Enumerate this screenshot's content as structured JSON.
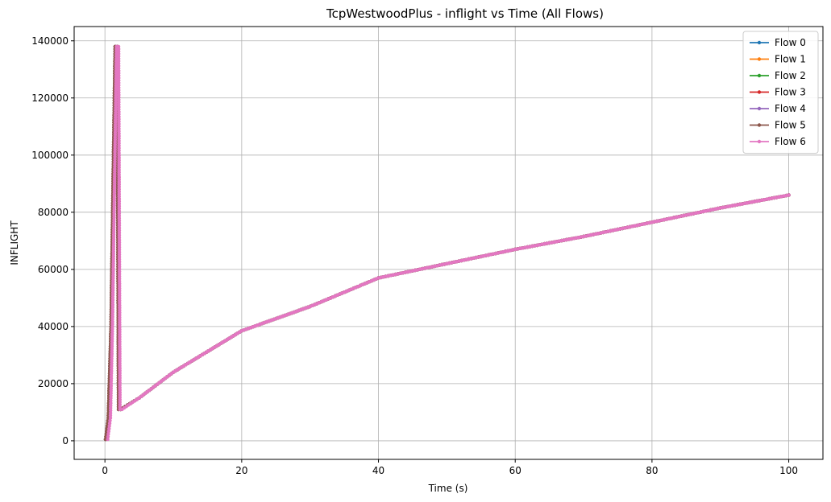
{
  "chart_data": {
    "type": "line",
    "title": "TcpWestwoodPlus - inflight vs Time (All Flows)",
    "xlabel": "Time (s)",
    "ylabel": "INFLIGHT",
    "xlim": [
      -4.5,
      105
    ],
    "ylim": [
      -6500,
      145000
    ],
    "xticks": [
      0,
      20,
      40,
      60,
      80,
      100
    ],
    "yticks": [
      0,
      20000,
      40000,
      60000,
      80000,
      100000,
      120000,
      140000
    ],
    "grid": true,
    "legend_position": "top-right",
    "series": [
      {
        "name": "Flow 0",
        "color": "#1f77b4",
        "x": [
          0.1,
          0.5,
          0.9,
          1.2,
          1.5,
          1.8,
          2.0,
          2.3,
          5,
          10,
          20,
          30,
          40,
          50,
          60,
          70,
          80,
          90,
          100
        ],
        "y": [
          500,
          8000,
          40000,
          90000,
          138000,
          138000,
          11000,
          11000,
          15000,
          24000,
          38500,
          47000,
          57000,
          62000,
          67000,
          71500,
          76500,
          81500,
          86000
        ]
      },
      {
        "name": "Flow 1",
        "color": "#ff7f0e",
        "x": [
          0.1,
          0.5,
          0.9,
          1.2,
          1.5,
          1.8,
          2.0,
          2.3,
          5,
          10,
          20,
          30,
          40,
          50,
          60,
          70,
          80,
          90,
          100
        ],
        "y": [
          500,
          8000,
          40000,
          90000,
          138000,
          138000,
          11000,
          11000,
          15000,
          24000,
          38500,
          47000,
          57000,
          62000,
          67000,
          71500,
          76500,
          81500,
          86000
        ]
      },
      {
        "name": "Flow 2",
        "color": "#2ca02c",
        "x": [
          0.1,
          0.5,
          0.9,
          1.2,
          1.5,
          1.8,
          2.0,
          2.3,
          5,
          10,
          20,
          30,
          40,
          50,
          60,
          70,
          80,
          90,
          100
        ],
        "y": [
          500,
          8000,
          40000,
          90000,
          138000,
          138000,
          11000,
          11000,
          15000,
          24000,
          38500,
          47000,
          57000,
          62000,
          67000,
          71500,
          76500,
          81500,
          86000
        ]
      },
      {
        "name": "Flow 3",
        "color": "#d62728",
        "x": [
          0.1,
          0.5,
          0.9,
          1.2,
          1.5,
          1.8,
          2.0,
          2.3,
          5,
          10,
          20,
          30,
          40,
          50,
          60,
          70,
          80,
          90,
          100
        ],
        "y": [
          500,
          8000,
          40000,
          90000,
          138000,
          138000,
          11000,
          11000,
          15000,
          24000,
          38500,
          47000,
          57000,
          62000,
          67000,
          71500,
          76500,
          81500,
          86000
        ]
      },
      {
        "name": "Flow 4",
        "color": "#9467bd",
        "x": [
          0.1,
          0.5,
          0.9,
          1.2,
          1.5,
          1.8,
          2.0,
          2.3,
          5,
          10,
          20,
          30,
          40,
          50,
          60,
          70,
          80,
          90,
          100
        ],
        "y": [
          500,
          8000,
          40000,
          90000,
          138000,
          138000,
          11000,
          11000,
          15000,
          24000,
          38500,
          47000,
          57000,
          62000,
          67000,
          71500,
          76500,
          81500,
          86000
        ]
      },
      {
        "name": "Flow 5",
        "color": "#8c564b",
        "x": [
          0.1,
          0.5,
          0.9,
          1.2,
          1.5,
          1.8,
          2.0,
          2.3,
          5,
          10,
          20,
          30,
          40,
          50,
          60,
          70,
          80,
          90,
          100
        ],
        "y": [
          500,
          8000,
          40000,
          90000,
          138000,
          138000,
          11000,
          11000,
          15000,
          24000,
          38500,
          47000,
          57000,
          62000,
          67000,
          71500,
          76500,
          81500,
          86000
        ]
      },
      {
        "name": "Flow 6",
        "color": "#e377c2",
        "x": [
          0.4,
          0.8,
          1.1,
          1.4,
          1.7,
          2.0,
          2.2,
          2.5,
          5,
          10,
          20,
          30,
          40,
          50,
          60,
          70,
          80,
          90,
          100
        ],
        "y": [
          500,
          8000,
          40000,
          90000,
          138000,
          138000,
          11000,
          11000,
          15000,
          24000,
          38500,
          47000,
          57000,
          62000,
          67000,
          71500,
          76500,
          81500,
          86000
        ]
      }
    ]
  }
}
